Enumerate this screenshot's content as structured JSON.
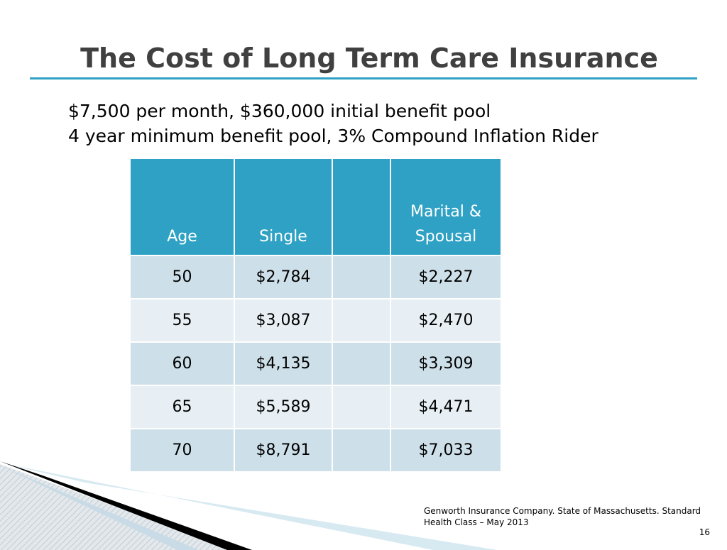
{
  "slide": {
    "title": "The Cost of Long Term Care Insurance",
    "subtitle_lines": [
      "$7,500 per month, $360,000 initial benefit pool",
      "4 year minimum benefit pool, 3% Compound Inflation Rider"
    ],
    "footnote": "Genworth Insurance Company.  State of Massachusetts.  Standard Health Class – May 2013",
    "page_number": "16",
    "accent_color": "#2ea1c4"
  },
  "table": {
    "headers": {
      "age": "Age",
      "single": "Single",
      "blank": "",
      "marital_line1": "Marital &",
      "marital_line2": "Spousal"
    },
    "rows": [
      {
        "age": "50",
        "single": "$2,784",
        "blank": "",
        "marital": "$2,227"
      },
      {
        "age": "55",
        "single": "$3,087",
        "blank": "",
        "marital": "$2,470"
      },
      {
        "age": "60",
        "single": "$4,135",
        "blank": "",
        "marital": "$3,309"
      },
      {
        "age": "65",
        "single": "$5,589",
        "blank": "",
        "marital": "$4,471"
      },
      {
        "age": "70",
        "single": "$8,791",
        "blank": "",
        "marital": "$7,033"
      }
    ]
  }
}
